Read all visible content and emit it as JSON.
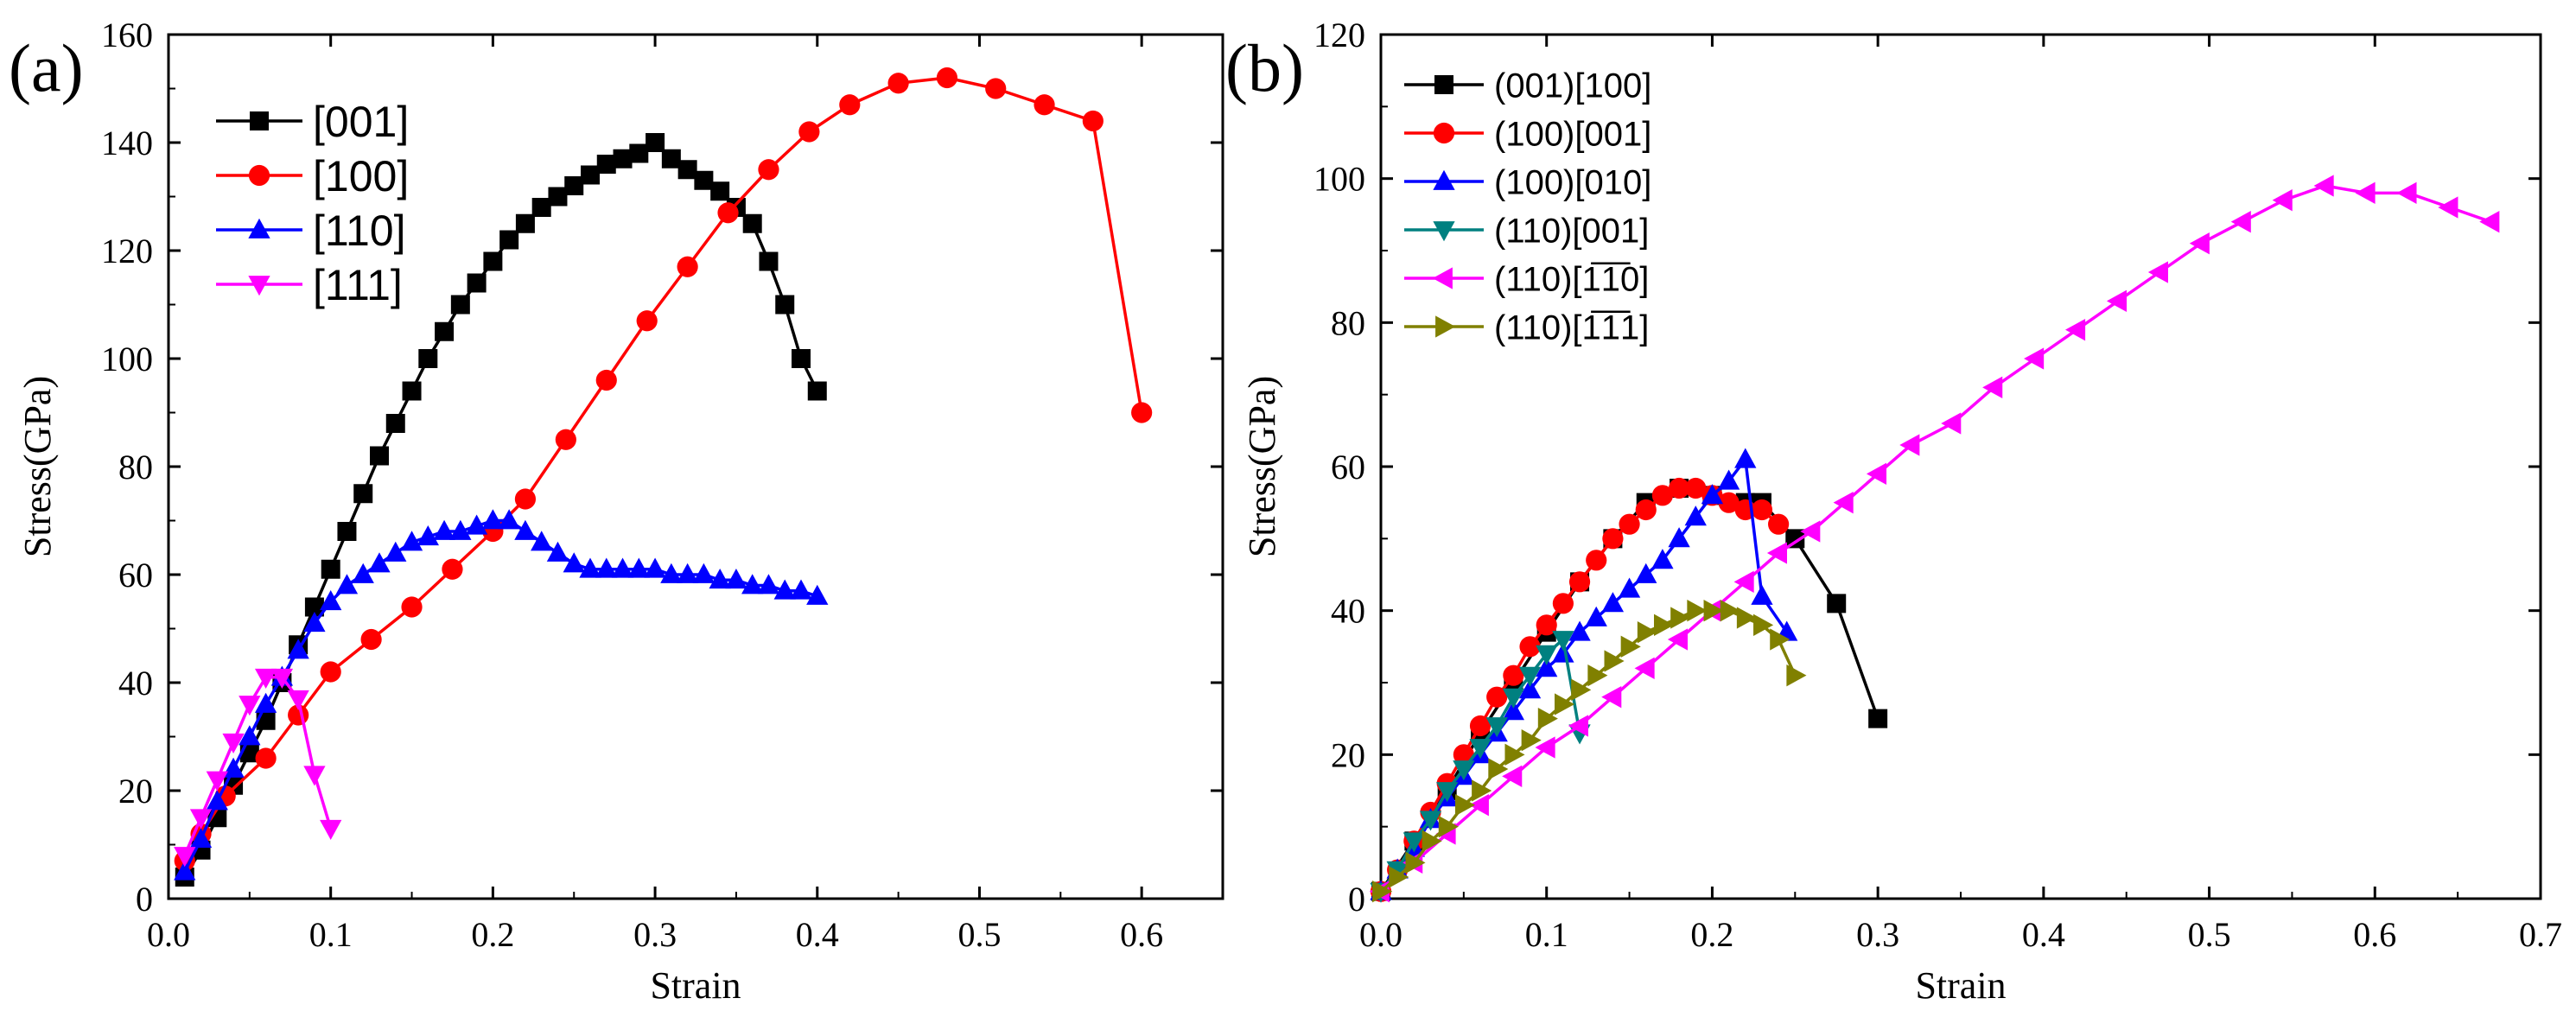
{
  "chart_data": [
    {
      "type": "line",
      "panel_label": "(a)",
      "xlabel": "Strain",
      "ylabel": "Stress(GPa)",
      "xlim": [
        0.0,
        0.65
      ],
      "ylim": [
        0,
        160
      ],
      "xticks": [
        "0.0",
        "0.1",
        "0.2",
        "0.3",
        "0.4",
        "0.5",
        "0.6"
      ],
      "xtick_values": [
        0.0,
        0.1,
        0.2,
        0.3,
        0.4,
        0.5,
        0.6
      ],
      "yticks": [
        "0",
        "20",
        "40",
        "60",
        "80",
        "100",
        "120",
        "140",
        "160"
      ],
      "ytick_values": [
        0,
        20,
        40,
        60,
        80,
        100,
        120,
        140,
        160
      ],
      "legend_position": "top-left",
      "series": [
        {
          "name": "[001]",
          "color": "#000000",
          "marker": "square",
          "x": [
            0.01,
            0.02,
            0.03,
            0.04,
            0.05,
            0.06,
            0.07,
            0.08,
            0.09,
            0.1,
            0.11,
            0.12,
            0.13,
            0.14,
            0.15,
            0.16,
            0.17,
            0.18,
            0.19,
            0.2,
            0.21,
            0.22,
            0.23,
            0.24,
            0.25,
            0.26,
            0.27,
            0.28,
            0.29,
            0.3,
            0.31,
            0.32,
            0.33,
            0.34,
            0.35,
            0.36,
            0.37,
            0.38,
            0.39,
            0.4
          ],
          "y": [
            4,
            9,
            15,
            21,
            27,
            33,
            40,
            47,
            54,
            61,
            68,
            75,
            82,
            88,
            94,
            100,
            105,
            110,
            114,
            118,
            122,
            125,
            128,
            130,
            132,
            134,
            136,
            137,
            138,
            140,
            137,
            135,
            133,
            131,
            128,
            125,
            118,
            110,
            100,
            94
          ]
        },
        {
          "name": "[100]",
          "color": "#ff0000",
          "marker": "circle",
          "x": [
            0.01,
            0.02,
            0.035,
            0.06,
            0.08,
            0.1,
            0.125,
            0.15,
            0.175,
            0.2,
            0.22,
            0.245,
            0.27,
            0.295,
            0.32,
            0.345,
            0.37,
            0.395,
            0.42,
            0.45,
            0.48,
            0.51,
            0.54,
            0.57,
            0.6
          ],
          "y": [
            7,
            12,
            19,
            26,
            34,
            42,
            48,
            54,
            61,
            68,
            74,
            85,
            96,
            107,
            117,
            127,
            135,
            142,
            147,
            151,
            152,
            150,
            147,
            144,
            90
          ]
        },
        {
          "name": "[110]",
          "color": "#0000ff",
          "marker": "triangle-up",
          "x": [
            0.01,
            0.02,
            0.03,
            0.04,
            0.05,
            0.06,
            0.07,
            0.08,
            0.09,
            0.1,
            0.11,
            0.12,
            0.13,
            0.14,
            0.15,
            0.16,
            0.17,
            0.18,
            0.19,
            0.2,
            0.21,
            0.22,
            0.23,
            0.24,
            0.25,
            0.26,
            0.27,
            0.28,
            0.29,
            0.3,
            0.31,
            0.32,
            0.33,
            0.34,
            0.35,
            0.36,
            0.37,
            0.38,
            0.39,
            0.4
          ],
          "y": [
            5,
            11,
            18,
            24,
            30,
            36,
            41,
            46,
            51,
            55,
            58,
            60,
            62,
            64,
            66,
            67,
            68,
            68,
            69,
            70,
            70,
            68,
            66,
            64,
            62,
            61,
            61,
            61,
            61,
            61,
            60,
            60,
            60,
            59,
            59,
            58,
            58,
            57,
            57,
            56
          ]
        },
        {
          "name": "[111]",
          "color": "#ff00ff",
          "marker": "triangle-down",
          "x": [
            0.01,
            0.02,
            0.03,
            0.04,
            0.05,
            0.06,
            0.07,
            0.08,
            0.09,
            0.1
          ],
          "y": [
            8,
            15,
            22,
            29,
            36,
            41,
            41,
            37,
            23,
            13
          ]
        }
      ]
    },
    {
      "type": "line",
      "panel_label": "(b)",
      "xlabel": "Strain",
      "ylabel": "Stress(GPa)",
      "xlim": [
        0.0,
        0.7
      ],
      "ylim": [
        0,
        120
      ],
      "xticks": [
        "0.0",
        "0.1",
        "0.2",
        "0.3",
        "0.4",
        "0.5",
        "0.6",
        "0.7"
      ],
      "xtick_values": [
        0.0,
        0.1,
        0.2,
        0.3,
        0.4,
        0.5,
        0.6,
        0.7
      ],
      "yticks": [
        "0",
        "20",
        "40",
        "60",
        "80",
        "100",
        "120"
      ],
      "ytick_values": [
        0,
        20,
        40,
        60,
        80,
        100,
        120
      ],
      "legend_position": "top-left",
      "series": [
        {
          "name": "(001)[100]",
          "color": "#000000",
          "marker": "square",
          "x": [
            0.0,
            0.02,
            0.04,
            0.06,
            0.08,
            0.1,
            0.12,
            0.14,
            0.16,
            0.18,
            0.2,
            0.22,
            0.23,
            0.25,
            0.275,
            0.3
          ],
          "y": [
            1,
            8,
            15,
            23,
            30,
            37,
            44,
            50,
            55,
            57,
            56,
            55,
            55,
            50,
            41,
            25
          ]
        },
        {
          "name": "(100)[001]",
          "color": "#ff0000",
          "marker": "circle",
          "x": [
            0.0,
            0.01,
            0.02,
            0.03,
            0.04,
            0.05,
            0.06,
            0.07,
            0.08,
            0.09,
            0.1,
            0.11,
            0.12,
            0.13,
            0.14,
            0.15,
            0.16,
            0.17,
            0.18,
            0.19,
            0.2,
            0.21,
            0.22,
            0.23,
            0.24
          ],
          "y": [
            1,
            4,
            8,
            12,
            16,
            20,
            24,
            28,
            31,
            35,
            38,
            41,
            44,
            47,
            50,
            52,
            54,
            56,
            57,
            57,
            56,
            55,
            54,
            54,
            52
          ]
        },
        {
          "name": "(100)[010]",
          "color": "#0000ff",
          "marker": "triangle-up",
          "x": [
            0.0,
            0.01,
            0.02,
            0.03,
            0.04,
            0.05,
            0.06,
            0.07,
            0.08,
            0.09,
            0.1,
            0.11,
            0.12,
            0.13,
            0.14,
            0.15,
            0.16,
            0.17,
            0.18,
            0.19,
            0.2,
            0.21,
            0.22,
            0.23,
            0.245
          ],
          "y": [
            1,
            4,
            7,
            11,
            14,
            17,
            20,
            23,
            26,
            29,
            32,
            34,
            37,
            39,
            41,
            43,
            45,
            47,
            50,
            53,
            56,
            58,
            61,
            42,
            37
          ]
        },
        {
          "name": "(110)[001]",
          "color": "#008080",
          "marker": "triangle-down",
          "x": [
            0.0,
            0.01,
            0.02,
            0.03,
            0.04,
            0.05,
            0.06,
            0.07,
            0.08,
            0.09,
            0.1,
            0.11,
            0.12
          ],
          "y": [
            1,
            4,
            8,
            11,
            15,
            18,
            21,
            24,
            28,
            31,
            34,
            36,
            23
          ]
        },
        {
          "name": "(110)[1̅1̅0]",
          "color": "#ff00ff",
          "marker": "triangle-left",
          "x": [
            0.0,
            0.02,
            0.04,
            0.06,
            0.08,
            0.1,
            0.12,
            0.14,
            0.16,
            0.18,
            0.2,
            0.22,
            0.24,
            0.26,
            0.28,
            0.3,
            0.32,
            0.345,
            0.37,
            0.395,
            0.42,
            0.445,
            0.47,
            0.495,
            0.52,
            0.545,
            0.57,
            0.595,
            0.62,
            0.645,
            0.67
          ],
          "y": [
            1,
            5,
            9,
            13,
            17,
            21,
            24,
            28,
            32,
            36,
            40,
            44,
            48,
            51,
            55,
            59,
            63,
            66,
            71,
            75,
            79,
            83,
            87,
            91,
            94,
            97,
            99,
            98,
            98,
            96,
            94
          ]
        },
        {
          "name": "(110)[1̅1̅1]",
          "color": "#808000",
          "marker": "triangle-right",
          "x": [
            0.0,
            0.01,
            0.02,
            0.03,
            0.04,
            0.05,
            0.06,
            0.07,
            0.08,
            0.09,
            0.1,
            0.11,
            0.12,
            0.13,
            0.14,
            0.15,
            0.16,
            0.17,
            0.18,
            0.19,
            0.2,
            0.21,
            0.22,
            0.23,
            0.24,
            0.25
          ],
          "y": [
            1,
            3,
            5,
            8,
            10,
            13,
            15,
            18,
            20,
            22,
            25,
            27,
            29,
            31,
            33,
            35,
            37,
            38,
            39,
            40,
            40,
            40,
            39,
            38,
            36,
            31
          ]
        }
      ]
    }
  ]
}
